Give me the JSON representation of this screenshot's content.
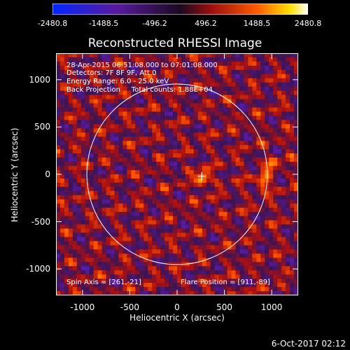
{
  "chart_data": {
    "type": "heatmap",
    "title": "Reconstructed RHESSI Image",
    "xlabel": "Heliocentric X (arcsec)",
    "ylabel": "Heliocentric Y (arcsec)",
    "xlim": [
      -1280,
      1280
    ],
    "ylim": [
      -1280,
      1280
    ],
    "xticks": [
      "-1000",
      "-500",
      "0",
      "500",
      "1000"
    ],
    "xtick_values": [
      -1000,
      -500,
      0,
      500,
      1000
    ],
    "yticks": [
      "1000",
      "500",
      "0",
      "-500",
      "-1000"
    ],
    "ytick_values": [
      1000,
      500,
      0,
      -500,
      -1000
    ],
    "colorbar": {
      "range": [
        -2480.8,
        2480.8
      ],
      "ticks": [
        "-2480.8",
        "-1488.5",
        "-496.2",
        "496.2",
        "1488.5",
        "2480.8"
      ],
      "tick_values": [
        -2480.8,
        -1488.5,
        -496.2,
        496.2,
        1488.5,
        2480.8
      ],
      "colors": [
        "#0033ff",
        "#5a1aa0",
        "#3b1456",
        "#b01010",
        "#ff5500",
        "#ffe000",
        "#ffffff"
      ]
    },
    "info_lines": [
      "28-Apr-2015 06:51:08.000 to 07:01:08.000",
      "Detectors: 7F 8F 9F, Att 0",
      "Energy Range: 6.0 - 25.0 keV",
      "Back Projection     Total counts: 1.88E+04"
    ],
    "spin_axis": "Spin Axis = [261,-21]",
    "flare_position": "Flare Position = [911,-89]",
    "solar_limb_radius_arcsec": 954,
    "spin_axis_marker": [
      261,
      -21
    ],
    "bright_sources": [
      {
        "x": 270,
        "y": -40,
        "value": 2300
      },
      {
        "x": 911,
        "y": -89,
        "value": 1900
      },
      {
        "x": 1000,
        "y": 100,
        "value": 1500
      }
    ]
  },
  "date_stamp": "6-Oct-2017 02:12"
}
